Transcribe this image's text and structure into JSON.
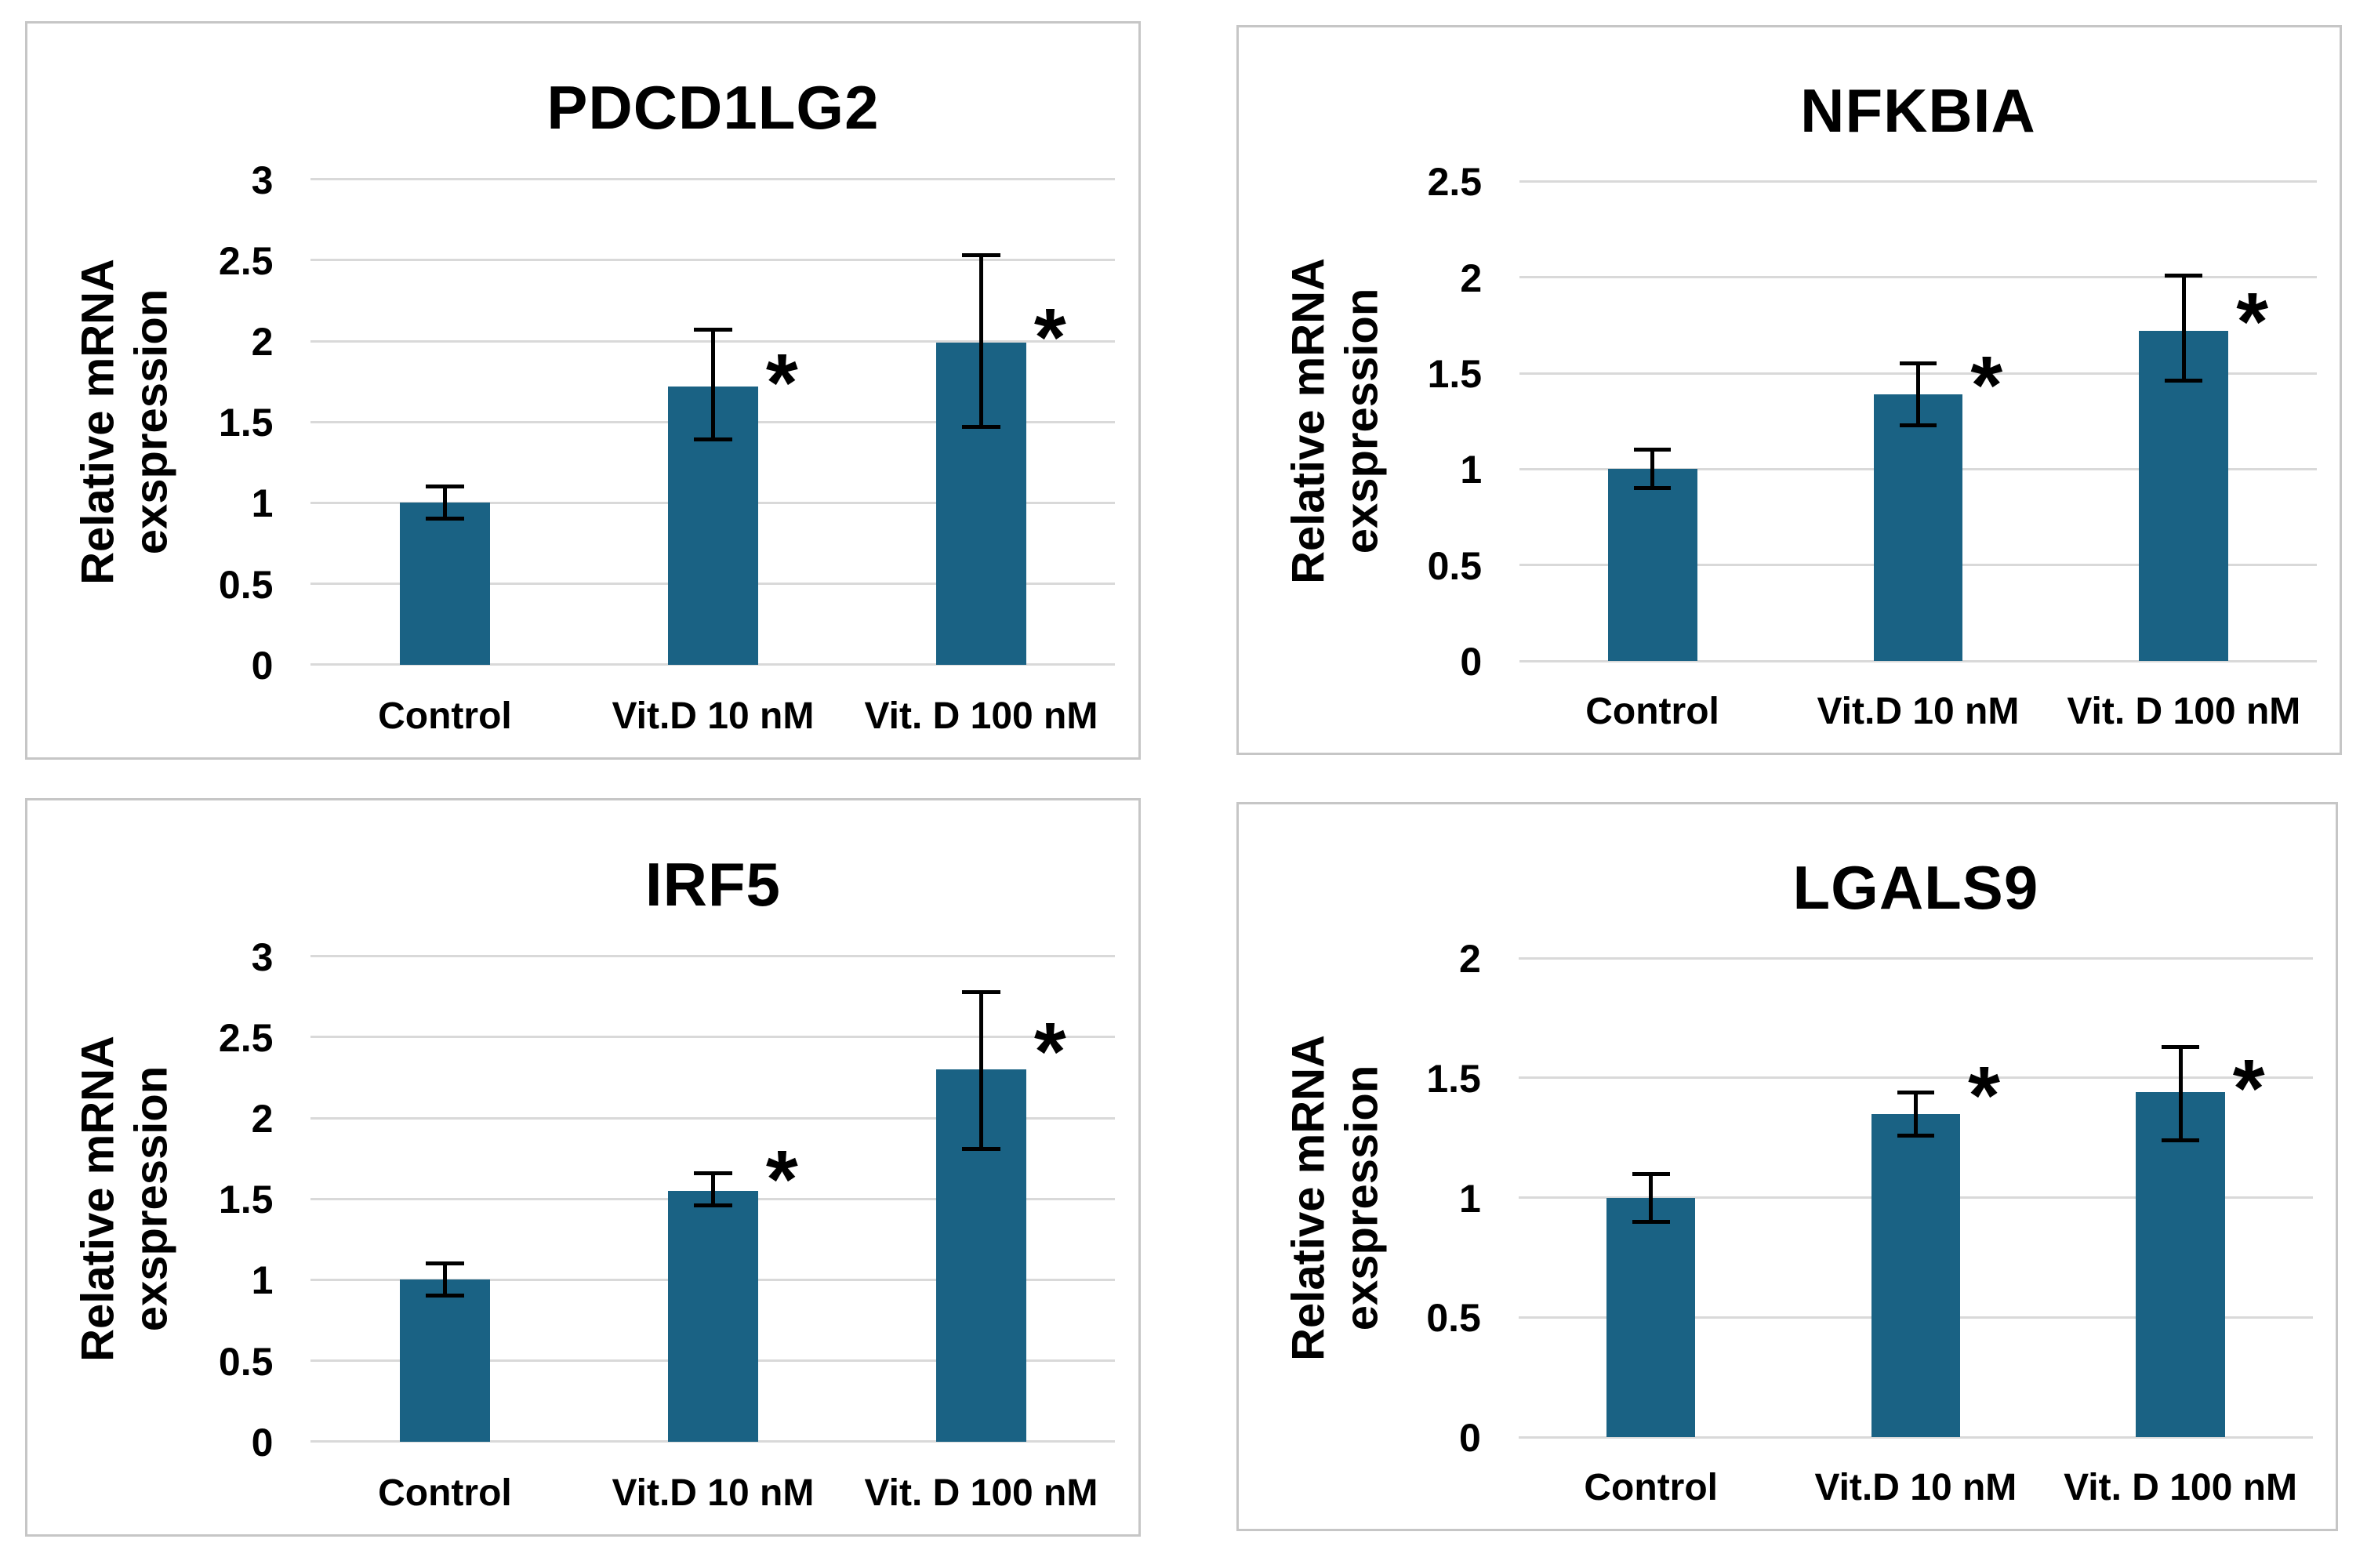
{
  "page": {
    "background": "#ffffff",
    "figure_type": "2x2 grid of qPCR bar charts with error bars and significance asterisks"
  },
  "shared": {
    "y_axis_label_line1": "Relative mRNA",
    "y_axis_label_line2": "exspression",
    "significance_marker": "*",
    "bar_color": "#1A6284",
    "gridline_color": "#D9D9D9",
    "error_bar_color": "#000000",
    "panel_border_color": "#C6C6C6",
    "text_color": "#000000"
  },
  "chart_data": [
    {
      "type": "bar",
      "title": "PDCD1LG2",
      "position": "top-left",
      "xlabel": "",
      "ylabel": "Relative mRNA exspression",
      "ylim": [
        0,
        3
      ],
      "yticks": [
        0,
        0.5,
        1,
        1.5,
        2,
        2.5,
        3
      ],
      "ytick_labels": [
        "0",
        "0.5",
        "1",
        "1.5",
        "2",
        "2.5",
        "3"
      ],
      "grid": true,
      "legend": false,
      "categories": [
        "Control",
        "Vit.D 10 nM",
        "Vit. D 100 nM"
      ],
      "values": [
        1.0,
        1.72,
        1.99
      ],
      "errors_plus": [
        0.1,
        0.35,
        0.54
      ],
      "errors_minus": [
        0.1,
        0.33,
        0.52
      ],
      "significant": [
        false,
        true,
        true
      ],
      "star_y": [
        null,
        1.85,
        2.13
      ]
    },
    {
      "type": "bar",
      "title": "NFKBIA",
      "position": "top-right",
      "xlabel": "",
      "ylabel": "Relative mRNA exspression",
      "ylim": [
        0,
        2.5
      ],
      "yticks": [
        0,
        0.5,
        1,
        1.5,
        2,
        2.5
      ],
      "ytick_labels": [
        "0",
        "0.5",
        "1",
        "1.5",
        "2",
        "2.5"
      ],
      "grid": true,
      "legend": false,
      "categories": [
        "Control",
        "Vit.D 10 nM",
        "Vit. D 100 nM"
      ],
      "values": [
        1.0,
        1.39,
        1.72
      ],
      "errors_plus": [
        0.1,
        0.16,
        0.29
      ],
      "errors_minus": [
        0.1,
        0.16,
        0.26
      ],
      "significant": [
        false,
        true,
        true
      ],
      "star_y": [
        null,
        1.53,
        1.86
      ]
    },
    {
      "type": "bar",
      "title": "IRF5",
      "position": "bottom-left",
      "xlabel": "",
      "ylabel": "Relative mRNA exspression",
      "ylim": [
        0,
        3
      ],
      "yticks": [
        0,
        0.5,
        1,
        1.5,
        2,
        2.5,
        3
      ],
      "ytick_labels": [
        "0",
        "0.5",
        "1",
        "1.5",
        "2",
        "2.5",
        "3"
      ],
      "grid": true,
      "legend": false,
      "categories": [
        "Control",
        "Vit.D 10 nM",
        "Vit. D 100 nM"
      ],
      "values": [
        1.0,
        1.55,
        2.3
      ],
      "errors_plus": [
        0.1,
        0.11,
        0.48
      ],
      "errors_minus": [
        0.1,
        0.09,
        0.49
      ],
      "significant": [
        false,
        true,
        true
      ],
      "star_y": [
        null,
        1.73,
        2.52
      ]
    },
    {
      "type": "bar",
      "title": "LGALS9",
      "position": "bottom-right",
      "xlabel": "",
      "ylabel": "Relative mRNA exspression",
      "ylim": [
        0,
        2
      ],
      "yticks": [
        0,
        0.5,
        1,
        1.5,
        2
      ],
      "ytick_labels": [
        "0",
        "0.5",
        "1",
        "1.5",
        "2"
      ],
      "grid": true,
      "legend": false,
      "categories": [
        "Control",
        "Vit.D 10 nM",
        "Vit. D 100 nM"
      ],
      "values": [
        1.0,
        1.35,
        1.44
      ],
      "errors_plus": [
        0.1,
        0.09,
        0.19
      ],
      "errors_minus": [
        0.1,
        0.09,
        0.2
      ],
      "significant": [
        false,
        true,
        true
      ],
      "star_y": [
        null,
        1.5,
        1.53
      ]
    }
  ]
}
